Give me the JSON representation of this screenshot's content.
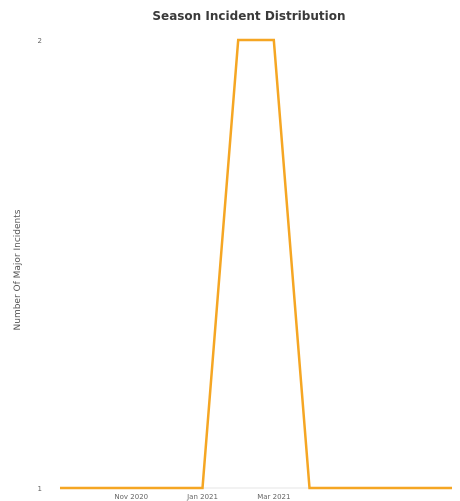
{
  "chart_data": {
    "type": "line",
    "title": "Season Incident Distribution",
    "xlabel": "",
    "ylabel": "Number Of Major Incidents",
    "x": [
      "2020-09",
      "2020-10",
      "2020-11",
      "2020-12",
      "2021-01",
      "2021-02",
      "2021-03",
      "2021-04",
      "2021-05",
      "2021-06",
      "2021-07",
      "2021-08"
    ],
    "x_tick_labels": [
      "Nov 2020",
      "Jan 2021",
      "Mar 2021"
    ],
    "x_tick_positions": [
      "2020-11",
      "2021-01",
      "2021-03"
    ],
    "series": [
      {
        "values": [
          1,
          1,
          1,
          1,
          1,
          2,
          2,
          1,
          1,
          1,
          1,
          1
        ]
      }
    ],
    "y_ticks": [
      1,
      2
    ],
    "y_tick_labels": [
      "1",
      "2"
    ],
    "ylim": [
      1,
      2
    ],
    "grid": false,
    "colors": {
      "line": "#F5A623",
      "background": "#FFFFFF",
      "axis": "#E6E6E6"
    }
  }
}
